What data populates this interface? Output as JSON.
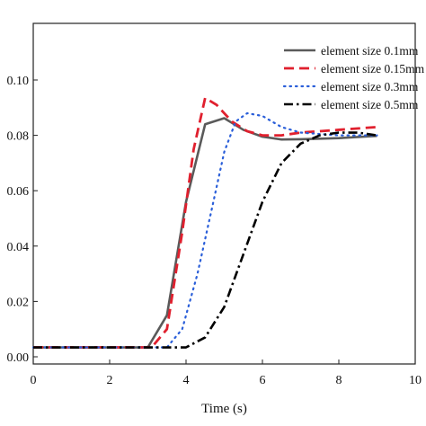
{
  "chart_data": {
    "type": "line",
    "xlabel": "Time (s)",
    "ylabel": "",
    "xlim": [
      0,
      10
    ],
    "ylim": [
      0.0,
      0.11
    ],
    "xticks": [
      0,
      2,
      4,
      6,
      8,
      10
    ],
    "xtick_labels": [
      "0",
      "2",
      "4",
      "6",
      "8",
      "10"
    ],
    "yticks": [
      0.0,
      0.02,
      0.04,
      0.06,
      0.08,
      0.1
    ],
    "ytick_labels": [
      "0.00",
      "0.02",
      "0.04",
      "0.06",
      "0.08",
      "0.10"
    ],
    "grid": false,
    "legend_position": "top-right",
    "series": [
      {
        "name": "element size 0.1mm",
        "color": "#5a5a5a",
        "style": "solid",
        "x": [
          0,
          3.0,
          3.5,
          4.0,
          4.5,
          5.0,
          5.5,
          6.0,
          6.5,
          7.0,
          8.0,
          9.0
        ],
        "y": [
          0.0034,
          0.0034,
          0.015,
          0.056,
          0.084,
          0.0862,
          0.082,
          0.0795,
          0.0785,
          0.0786,
          0.079,
          0.0798
        ]
      },
      {
        "name": "element size 0.15mm",
        "color": "#e0202e",
        "style": "dashed",
        "x": [
          0,
          3.1,
          3.5,
          3.9,
          4.2,
          4.5,
          4.8,
          5.2,
          5.6,
          6.0,
          6.5,
          7.0,
          8.0,
          9.0
        ],
        "y": [
          0.0034,
          0.0034,
          0.01,
          0.045,
          0.075,
          0.0935,
          0.091,
          0.085,
          0.0815,
          0.08,
          0.08,
          0.081,
          0.082,
          0.083
        ]
      },
      {
        "name": "element size 0.3mm",
        "color": "#2b5fd9",
        "style": "dotted",
        "x": [
          0,
          3.5,
          3.9,
          4.3,
          4.7,
          5.0,
          5.3,
          5.6,
          6.0,
          6.5,
          7.0,
          8.0,
          9.0
        ],
        "y": [
          0.0034,
          0.0034,
          0.01,
          0.03,
          0.055,
          0.074,
          0.085,
          0.088,
          0.087,
          0.083,
          0.081,
          0.08,
          0.08
        ]
      },
      {
        "name": "element size 0.5mm",
        "color": "#000000",
        "style": "dashdot",
        "x": [
          0,
          4.0,
          4.5,
          5.0,
          5.5,
          6.0,
          6.5,
          7.0,
          7.5,
          8.0,
          8.5,
          9.0
        ],
        "y": [
          0.0034,
          0.0034,
          0.007,
          0.018,
          0.037,
          0.056,
          0.07,
          0.077,
          0.08,
          0.081,
          0.081,
          0.08
        ]
      }
    ]
  }
}
